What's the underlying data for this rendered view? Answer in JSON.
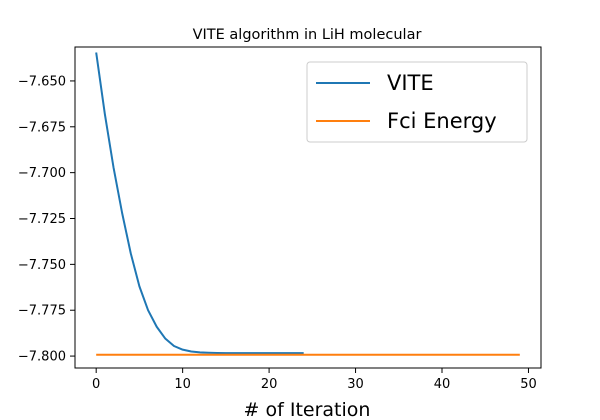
{
  "chart_data": {
    "type": "line",
    "title": "VITE algorithm in LiH molecular",
    "xlabel": "# of Iteration",
    "ylabel": "",
    "xlim": [
      -2.45,
      51.45
    ],
    "ylim": [
      -7.8065,
      -7.6315
    ],
    "xticks": [
      0,
      10,
      20,
      30,
      40,
      50
    ],
    "yticks": [
      -7.8,
      -7.775,
      -7.75,
      -7.725,
      -7.7,
      -7.675,
      -7.65
    ],
    "xtick_labels": [
      "0",
      "10",
      "20",
      "30",
      "40",
      "50"
    ],
    "ytick_labels": [
      "−7.800",
      "−7.775",
      "−7.750",
      "−7.725",
      "−7.700",
      "−7.675",
      "−7.650"
    ],
    "grid": false,
    "legend_position": "top-right",
    "series": [
      {
        "name": "VITE",
        "color": "#1f77b4",
        "x": [
          0,
          1,
          2,
          3,
          4,
          5,
          6,
          7,
          8,
          9,
          10,
          11,
          12,
          13,
          14,
          15,
          16,
          17,
          18,
          19,
          20,
          21,
          22,
          23,
          24
        ],
        "y": [
          -7.6345,
          -7.668,
          -7.697,
          -7.722,
          -7.744,
          -7.762,
          -7.775,
          -7.784,
          -7.7905,
          -7.7945,
          -7.7965,
          -7.7975,
          -7.798,
          -7.7982,
          -7.7983,
          -7.7984,
          -7.7984,
          -7.7984,
          -7.7984,
          -7.7984,
          -7.7984,
          -7.7984,
          -7.7984,
          -7.7984,
          -7.7984
        ]
      },
      {
        "name": "Fci Energy",
        "color": "#ff7f0e",
        "x": [
          0,
          49
        ],
        "y": [
          -7.7993,
          -7.7993
        ]
      }
    ]
  }
}
